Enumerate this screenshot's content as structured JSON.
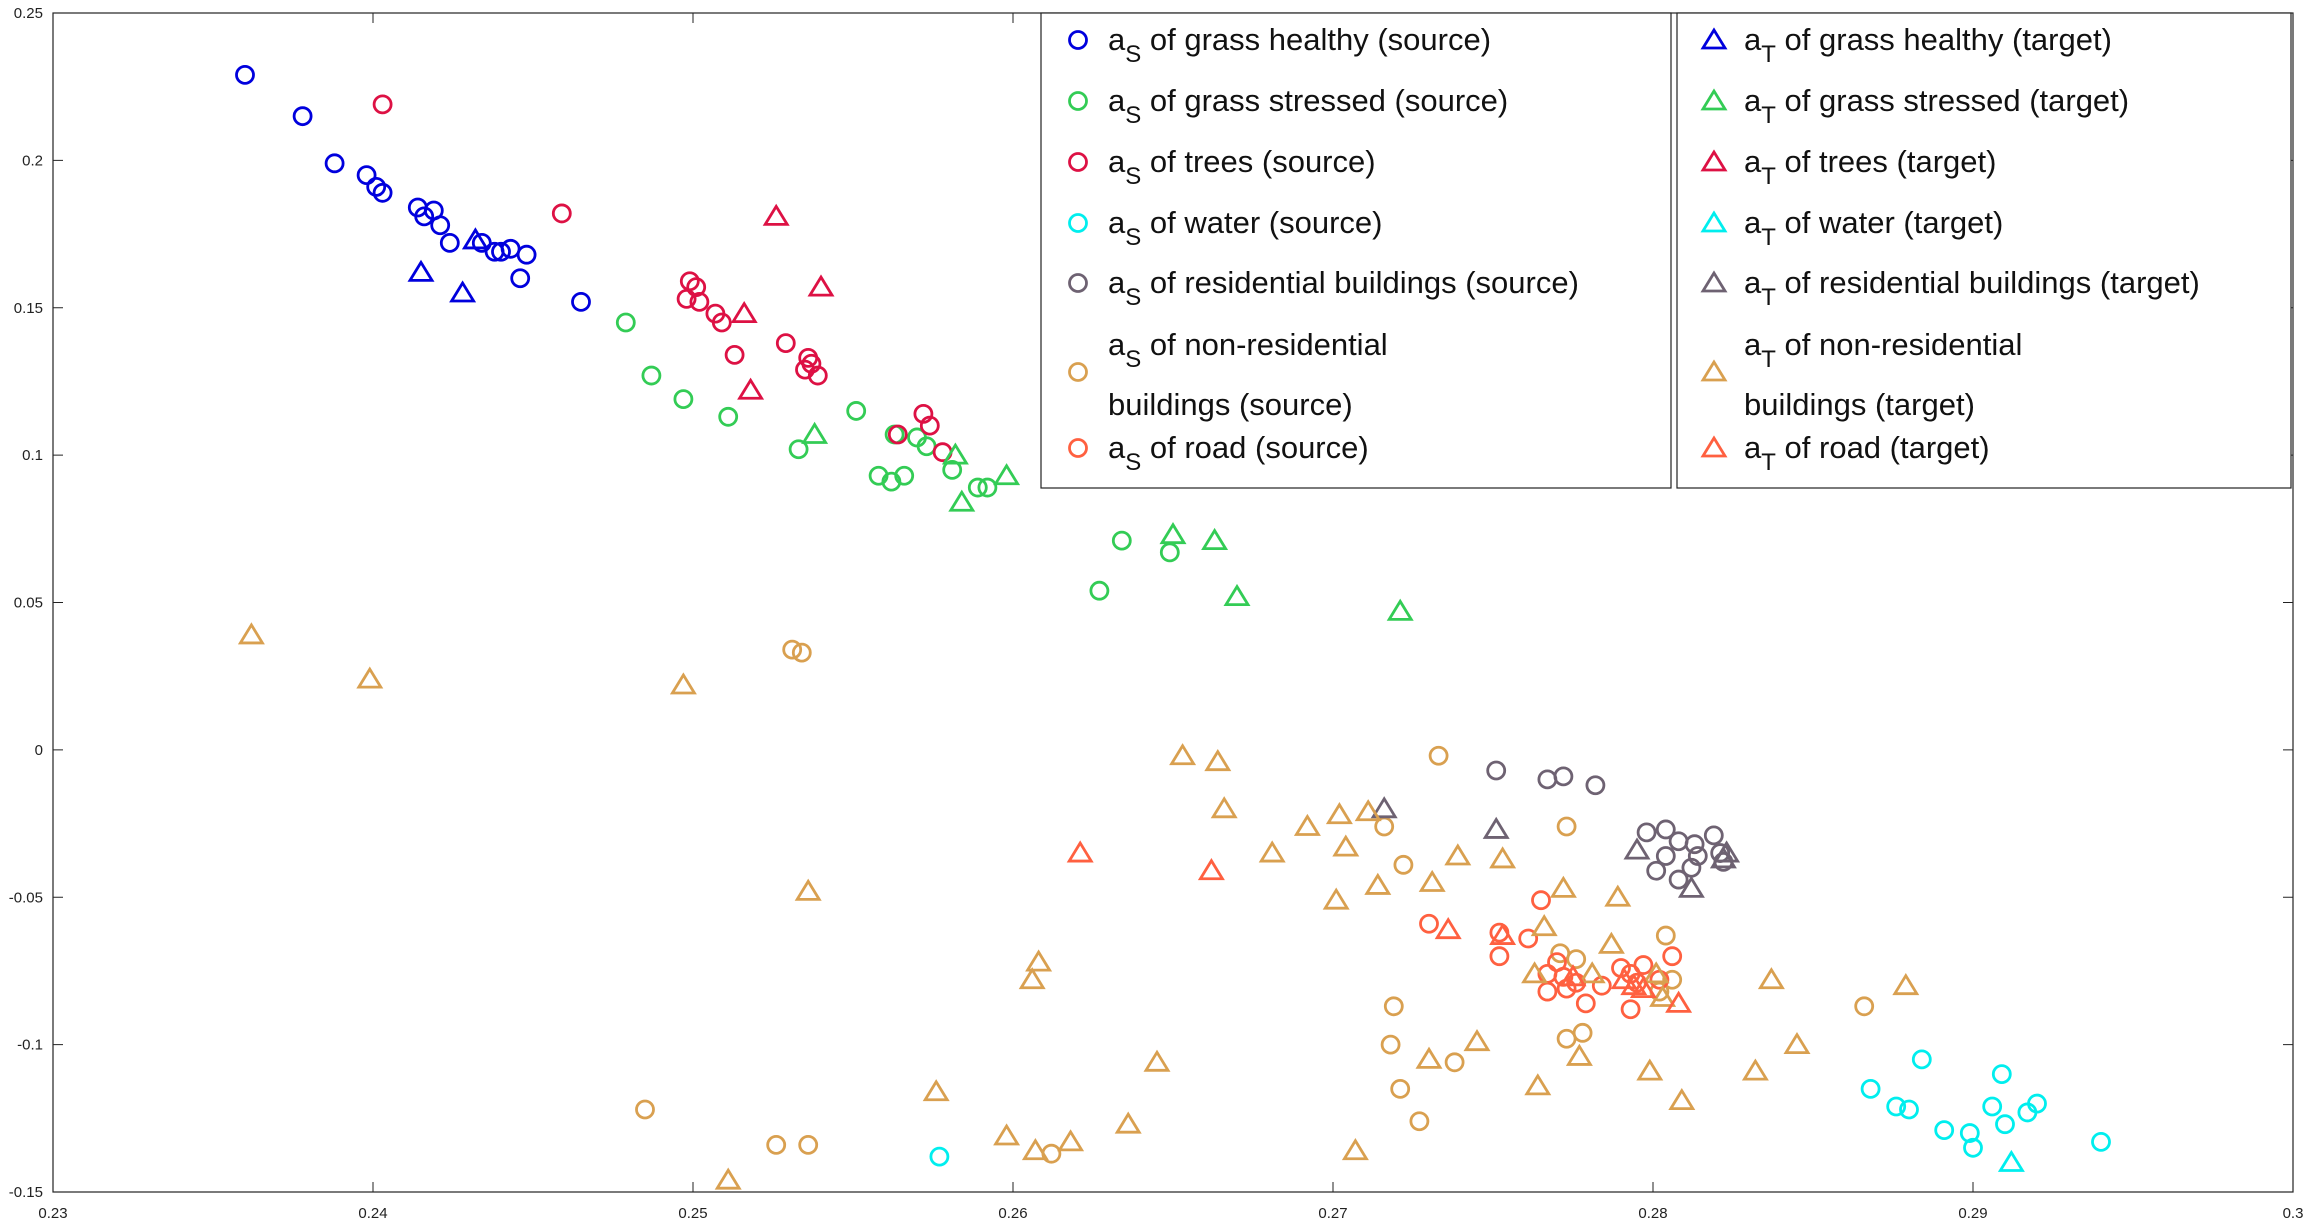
{
  "chart_data": {
    "type": "scatter",
    "title": "",
    "xlabel": "",
    "ylabel": "",
    "xlim": [
      0.23,
      0.3
    ],
    "ylim": [
      -0.15,
      0.25
    ],
    "xticks": [
      "0.23",
      "0.24",
      "0.25",
      "0.26",
      "0.27",
      "0.28",
      "0.29",
      "0.3"
    ],
    "yticks": [
      "0.25",
      "0.2",
      "0.15",
      "0.1",
      "0.05",
      "0",
      "-0.05",
      "-0.1",
      "-0.15"
    ],
    "grid": false,
    "legend_position": "top-right",
    "series": [
      {
        "name": "aS of grass healthy (source)",
        "label_main": "a",
        "label_sub": "S",
        "label_rest": " of grass healthy (source)",
        "label_rest2": "",
        "marker": "circle",
        "color": "#0000dd",
        "points": [
          [
            0.236,
            0.229
          ],
          [
            0.2378,
            0.215
          ],
          [
            0.2388,
            0.199
          ],
          [
            0.2398,
            0.195
          ],
          [
            0.2401,
            0.191
          ],
          [
            0.2403,
            0.189
          ],
          [
            0.2414,
            0.184
          ],
          [
            0.2416,
            0.181
          ],
          [
            0.2419,
            0.183
          ],
          [
            0.2421,
            0.178
          ],
          [
            0.2424,
            0.172
          ],
          [
            0.2434,
            0.172
          ],
          [
            0.2438,
            0.169
          ],
          [
            0.244,
            0.169
          ],
          [
            0.2443,
            0.17
          ],
          [
            0.2448,
            0.168
          ],
          [
            0.2446,
            0.16
          ],
          [
            0.2465,
            0.152
          ]
        ]
      },
      {
        "name": "aS of grass stressed (source)",
        "label_main": "a",
        "label_sub": "S",
        "label_rest": " of grass stressed (source)",
        "label_rest2": "",
        "marker": "circle",
        "color": "#33cc55",
        "points": [
          [
            0.2479,
            0.145
          ],
          [
            0.2487,
            0.127
          ],
          [
            0.2497,
            0.119
          ],
          [
            0.2511,
            0.113
          ],
          [
            0.2533,
            0.102
          ],
          [
            0.2551,
            0.115
          ],
          [
            0.2563,
            0.107
          ],
          [
            0.257,
            0.106
          ],
          [
            0.2573,
            0.103
          ],
          [
            0.2558,
            0.093
          ],
          [
            0.2562,
            0.091
          ],
          [
            0.2566,
            0.093
          ],
          [
            0.2581,
            0.095
          ],
          [
            0.2589,
            0.089
          ],
          [
            0.2592,
            0.089
          ],
          [
            0.2634,
            0.071
          ],
          [
            0.2649,
            0.067
          ],
          [
            0.2627,
            0.054
          ]
        ]
      },
      {
        "name": "aS of trees (source)",
        "label_main": "a",
        "label_sub": "S",
        "label_rest": " of trees (source)",
        "label_rest2": "",
        "marker": "circle",
        "color": "#dd1144",
        "points": [
          [
            0.2403,
            0.219
          ],
          [
            0.2459,
            0.182
          ],
          [
            0.2499,
            0.159
          ],
          [
            0.2501,
            0.157
          ],
          [
            0.2498,
            0.153
          ],
          [
            0.2502,
            0.152
          ],
          [
            0.2507,
            0.148
          ],
          [
            0.2509,
            0.145
          ],
          [
            0.2513,
            0.134
          ],
          [
            0.2529,
            0.138
          ],
          [
            0.2536,
            0.133
          ],
          [
            0.2537,
            0.131
          ],
          [
            0.2535,
            0.129
          ],
          [
            0.2539,
            0.127
          ],
          [
            0.2564,
            0.107
          ],
          [
            0.2572,
            0.114
          ],
          [
            0.2574,
            0.11
          ],
          [
            0.2578,
            0.101
          ]
        ]
      },
      {
        "name": "aS of water (source)",
        "label_main": "a",
        "label_sub": "S",
        "label_rest": " of water (source)",
        "label_rest2": "",
        "marker": "circle",
        "color": "#00eeee",
        "points": [
          [
            0.2577,
            -0.138
          ],
          [
            0.2868,
            -0.115
          ],
          [
            0.2876,
            -0.121
          ],
          [
            0.288,
            -0.122
          ],
          [
            0.2884,
            -0.105
          ],
          [
            0.2891,
            -0.129
          ],
          [
            0.2899,
            -0.13
          ],
          [
            0.29,
            -0.135
          ],
          [
            0.2906,
            -0.121
          ],
          [
            0.2909,
            -0.11
          ],
          [
            0.291,
            -0.127
          ],
          [
            0.2917,
            -0.123
          ],
          [
            0.292,
            -0.12
          ],
          [
            0.294,
            -0.133
          ]
        ]
      },
      {
        "name": "aS of residential buildings (source)",
        "label_main": "a",
        "label_sub": "S",
        "label_rest": " of residential buildings (source)",
        "label_rest2": "",
        "marker": "circle",
        "color": "#6e6272",
        "points": [
          [
            0.2751,
            -0.007
          ],
          [
            0.2767,
            -0.01
          ],
          [
            0.2772,
            -0.009
          ],
          [
            0.2782,
            -0.012
          ],
          [
            0.2798,
            -0.028
          ],
          [
            0.2804,
            -0.027
          ],
          [
            0.2808,
            -0.031
          ],
          [
            0.2813,
            -0.032
          ],
          [
            0.2814,
            -0.036
          ],
          [
            0.2819,
            -0.029
          ],
          [
            0.2821,
            -0.035
          ],
          [
            0.2822,
            -0.038
          ],
          [
            0.2804,
            -0.036
          ],
          [
            0.2801,
            -0.041
          ],
          [
            0.2808,
            -0.044
          ],
          [
            0.2812,
            -0.04
          ]
        ]
      },
      {
        "name": "aS of non-residential buildings (source)",
        "label_main": "a",
        "label_sub": "S",
        "label_rest": " of non-residential",
        "label_rest2": "buildings (source)",
        "marker": "circle",
        "color": "#d9a050",
        "points": [
          [
            0.2531,
            0.034
          ],
          [
            0.2534,
            0.033
          ],
          [
            0.2733,
            -0.002
          ],
          [
            0.2716,
            -0.026
          ],
          [
            0.2722,
            -0.039
          ],
          [
            0.2773,
            -0.026
          ],
          [
            0.2804,
            -0.063
          ],
          [
            0.2806,
            -0.078
          ],
          [
            0.2802,
            -0.082
          ],
          [
            0.2771,
            -0.069
          ],
          [
            0.2776,
            -0.071
          ],
          [
            0.2773,
            -0.098
          ],
          [
            0.2778,
            -0.096
          ],
          [
            0.2719,
            -0.087
          ],
          [
            0.2718,
            -0.1
          ],
          [
            0.2721,
            -0.115
          ],
          [
            0.2727,
            -0.126
          ],
          [
            0.2738,
            -0.106
          ],
          [
            0.2866,
            -0.087
          ],
          [
            0.2485,
            -0.122
          ],
          [
            0.2526,
            -0.134
          ],
          [
            0.2536,
            -0.134
          ],
          [
            0.2612,
            -0.137
          ]
        ]
      },
      {
        "name": "aS of road (source)",
        "label_main": "a",
        "label_sub": "S",
        "label_rest": " of road (source)",
        "label_rest2": "",
        "marker": "circle",
        "color": "#ff6040",
        "points": [
          [
            0.273,
            -0.059
          ],
          [
            0.2752,
            -0.062
          ],
          [
            0.2752,
            -0.07
          ],
          [
            0.2761,
            -0.064
          ],
          [
            0.2765,
            -0.051
          ],
          [
            0.2767,
            -0.076
          ],
          [
            0.2767,
            -0.082
          ],
          [
            0.277,
            -0.072
          ],
          [
            0.2772,
            -0.077
          ],
          [
            0.2773,
            -0.081
          ],
          [
            0.2776,
            -0.079
          ],
          [
            0.2779,
            -0.086
          ],
          [
            0.2784,
            -0.08
          ],
          [
            0.279,
            -0.074
          ],
          [
            0.2793,
            -0.076
          ],
          [
            0.2795,
            -0.079
          ],
          [
            0.2797,
            -0.073
          ],
          [
            0.2793,
            -0.088
          ],
          [
            0.2802,
            -0.078
          ],
          [
            0.2806,
            -0.07
          ]
        ]
      },
      {
        "name": "aT of grass healthy (target)",
        "label_main": "a",
        "label_sub": "T",
        "label_rest": " of grass healthy (target)",
        "label_rest2": "",
        "marker": "triangle",
        "color": "#0000dd",
        "points": [
          [
            0.2415,
            0.162
          ],
          [
            0.2428,
            0.155
          ],
          [
            0.2432,
            0.173
          ]
        ]
      },
      {
        "name": "aT of grass stressed (target)",
        "label_main": "a",
        "label_sub": "T",
        "label_rest": " of grass stressed (target)",
        "label_rest2": "",
        "marker": "triangle",
        "color": "#33cc55",
        "points": [
          [
            0.2538,
            0.107
          ],
          [
            0.2582,
            0.1
          ],
          [
            0.2584,
            0.084
          ],
          [
            0.2598,
            0.093
          ],
          [
            0.265,
            0.073
          ],
          [
            0.2663,
            0.071
          ],
          [
            0.267,
            0.052
          ],
          [
            0.2721,
            0.047
          ]
        ]
      },
      {
        "name": "aT of trees (target)",
        "label_main": "a",
        "label_sub": "T",
        "label_rest": " of trees (target)",
        "label_rest2": "",
        "marker": "triangle",
        "color": "#dd1144",
        "points": [
          [
            0.2526,
            0.181
          ],
          [
            0.254,
            0.157
          ],
          [
            0.2516,
            0.148
          ],
          [
            0.2518,
            0.122
          ]
        ]
      },
      {
        "name": "aT of water (target)",
        "label_main": "a",
        "label_sub": "T",
        "label_rest": " of water (target)",
        "label_rest2": "",
        "marker": "triangle",
        "color": "#00eeee",
        "points": [
          [
            0.2912,
            -0.14
          ]
        ]
      },
      {
        "name": "aT of residential buildings (target)",
        "label_main": "a",
        "label_sub": "T",
        "label_rest": " of residential buildings (target)",
        "label_rest2": "",
        "marker": "triangle",
        "color": "#6e6272",
        "points": [
          [
            0.2716,
            -0.02
          ],
          [
            0.2751,
            -0.027
          ],
          [
            0.2795,
            -0.034
          ],
          [
            0.2812,
            -0.047
          ],
          [
            0.2823,
            -0.035
          ],
          [
            0.2822,
            -0.037
          ]
        ]
      },
      {
        "name": "aT of non-residential buildings (target)",
        "label_main": "a",
        "label_sub": "T",
        "label_rest": " of non-residential",
        "label_rest2": "buildings (target)",
        "marker": "triangle",
        "color": "#d9a050",
        "points": [
          [
            0.2362,
            0.039
          ],
          [
            0.2399,
            0.024
          ],
          [
            0.2497,
            0.022
          ],
          [
            0.2536,
            -0.048
          ],
          [
            0.2653,
            -0.002
          ],
          [
            0.2664,
            -0.004
          ],
          [
            0.2666,
            -0.02
          ],
          [
            0.2681,
            -0.035
          ],
          [
            0.2692,
            -0.026
          ],
          [
            0.2702,
            -0.022
          ],
          [
            0.2711,
            -0.021
          ],
          [
            0.2704,
            -0.033
          ],
          [
            0.2701,
            -0.051
          ],
          [
            0.2714,
            -0.046
          ],
          [
            0.2731,
            -0.045
          ],
          [
            0.2739,
            -0.036
          ],
          [
            0.2753,
            -0.037
          ],
          [
            0.2772,
            -0.047
          ],
          [
            0.2789,
            -0.05
          ],
          [
            0.2787,
            -0.066
          ],
          [
            0.2766,
            -0.06
          ],
          [
            0.2763,
            -0.076
          ],
          [
            0.2781,
            -0.076
          ],
          [
            0.2801,
            -0.076
          ],
          [
            0.2803,
            -0.084
          ],
          [
            0.2837,
            -0.078
          ],
          [
            0.2879,
            -0.08
          ],
          [
            0.2745,
            -0.099
          ],
          [
            0.2777,
            -0.104
          ],
          [
            0.2799,
            -0.109
          ],
          [
            0.2809,
            -0.119
          ],
          [
            0.2764,
            -0.114
          ],
          [
            0.273,
            -0.105
          ],
          [
            0.2707,
            -0.136
          ],
          [
            0.2832,
            -0.109
          ],
          [
            0.2845,
            -0.1
          ],
          [
            0.2608,
            -0.072
          ],
          [
            0.2606,
            -0.078
          ],
          [
            0.2576,
            -0.116
          ],
          [
            0.2645,
            -0.106
          ],
          [
            0.2636,
            -0.127
          ],
          [
            0.2598,
            -0.131
          ],
          [
            0.2607,
            -0.136
          ],
          [
            0.2618,
            -0.133
          ],
          [
            0.2511,
            -0.146
          ]
        ]
      },
      {
        "name": "aT of road (target)",
        "label_main": "a",
        "label_sub": "T",
        "label_rest": " of road (target)",
        "label_rest2": "",
        "marker": "triangle",
        "color": "#ff6040",
        "points": [
          [
            0.2621,
            -0.035
          ],
          [
            0.2662,
            -0.041
          ],
          [
            0.2736,
            -0.061
          ],
          [
            0.2753,
            -0.063
          ],
          [
            0.2775,
            -0.077
          ],
          [
            0.2791,
            -0.078
          ],
          [
            0.2794,
            -0.08
          ],
          [
            0.2797,
            -0.081
          ],
          [
            0.2808,
            -0.086
          ]
        ]
      }
    ]
  }
}
